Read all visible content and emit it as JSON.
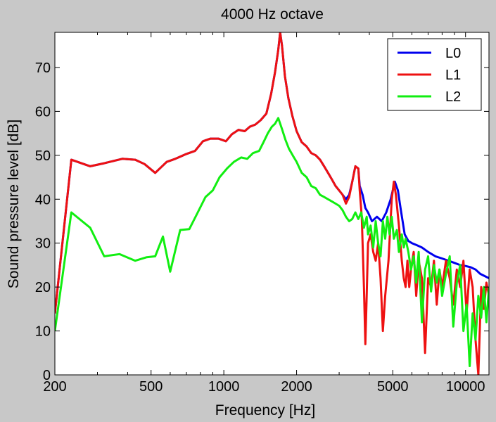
{
  "chart_data": {
    "type": "line",
    "title": "4000 Hz octave",
    "xlabel": "Frequency [Hz]",
    "ylabel": "Sound pressure level [dB]",
    "xscale": "log",
    "xlim": [
      200,
      12500
    ],
    "ylim": [
      0,
      78
    ],
    "xticks": [
      200,
      500,
      1000,
      2000,
      5000,
      10000
    ],
    "xtick_labels": [
      "200",
      "500",
      "1000",
      "2000",
      "5000",
      "10000"
    ],
    "yticks": [
      0,
      10,
      20,
      30,
      40,
      50,
      60,
      70
    ],
    "ytick_labels": [
      "0",
      "10",
      "20",
      "30",
      "40",
      "50",
      "60",
      "70"
    ],
    "grid": false,
    "legend_position": "top-right",
    "colors": {
      "background": "#c8c8c8",
      "plot_area": "#ffffff",
      "L0": "#0000ee",
      "L1": "#ee1111",
      "L2": "#11ee11"
    },
    "series": [
      {
        "name": "L0",
        "color": "#0000ee",
        "points": [
          [
            200,
            14
          ],
          [
            234,
            49
          ],
          [
            280,
            47.5
          ],
          [
            320,
            48.2
          ],
          [
            380,
            49.2
          ],
          [
            430,
            49
          ],
          [
            470,
            48
          ],
          [
            520,
            46
          ],
          [
            580,
            48.5
          ],
          [
            630,
            49.2
          ],
          [
            700,
            50.3
          ],
          [
            760,
            51
          ],
          [
            820,
            53.2
          ],
          [
            880,
            53.8
          ],
          [
            950,
            53.8
          ],
          [
            1020,
            53.2
          ],
          [
            1080,
            54.8
          ],
          [
            1150,
            55.8
          ],
          [
            1220,
            55.5
          ],
          [
            1280,
            56.5
          ],
          [
            1350,
            57
          ],
          [
            1420,
            58
          ],
          [
            1500,
            59.5
          ],
          [
            1570,
            64
          ],
          [
            1630,
            69
          ],
          [
            1680,
            74
          ],
          [
            1710,
            78
          ],
          [
            1740,
            75
          ],
          [
            1790,
            68
          ],
          [
            1850,
            63
          ],
          [
            1920,
            59
          ],
          [
            2000,
            55.5
          ],
          [
            2100,
            53
          ],
          [
            2200,
            52
          ],
          [
            2300,
            50.5
          ],
          [
            2400,
            50
          ],
          [
            2500,
            49
          ],
          [
            2600,
            47.5
          ],
          [
            2700,
            46
          ],
          [
            2800,
            44.5
          ],
          [
            2900,
            43
          ],
          [
            3000,
            42
          ],
          [
            3100,
            41
          ],
          [
            3200,
            40
          ],
          [
            3300,
            41
          ],
          [
            3400,
            44
          ],
          [
            3500,
            47.5
          ],
          [
            3600,
            47
          ],
          [
            3650,
            43
          ],
          [
            3750,
            41
          ],
          [
            3850,
            38
          ],
          [
            3950,
            37
          ],
          [
            4100,
            35
          ],
          [
            4300,
            36
          ],
          [
            4500,
            35
          ],
          [
            4700,
            37
          ],
          [
            4900,
            40
          ],
          [
            5100,
            44
          ],
          [
            5250,
            42
          ],
          [
            5400,
            37.5
          ],
          [
            5600,
            32
          ],
          [
            5800,
            30.5
          ],
          [
            6000,
            30
          ],
          [
            6300,
            29.5
          ],
          [
            6600,
            29
          ],
          [
            7000,
            28
          ],
          [
            7500,
            27
          ],
          [
            8000,
            26.5
          ],
          [
            8500,
            26
          ],
          [
            9000,
            25.5
          ],
          [
            9500,
            25
          ],
          [
            10000,
            24.8
          ],
          [
            10500,
            24.5
          ],
          [
            11000,
            24
          ],
          [
            11500,
            23
          ],
          [
            12000,
            22.5
          ],
          [
            12500,
            22
          ]
        ]
      },
      {
        "name": "L1",
        "color": "#ee1111",
        "points": [
          [
            200,
            14
          ],
          [
            234,
            49
          ],
          [
            280,
            47.5
          ],
          [
            320,
            48.2
          ],
          [
            380,
            49.2
          ],
          [
            430,
            49
          ],
          [
            470,
            48
          ],
          [
            520,
            46
          ],
          [
            580,
            48.5
          ],
          [
            630,
            49.2
          ],
          [
            700,
            50.3
          ],
          [
            760,
            51
          ],
          [
            820,
            53.2
          ],
          [
            880,
            53.8
          ],
          [
            950,
            53.8
          ],
          [
            1020,
            53.2
          ],
          [
            1080,
            54.8
          ],
          [
            1150,
            55.8
          ],
          [
            1220,
            55.5
          ],
          [
            1280,
            56.5
          ],
          [
            1350,
            57
          ],
          [
            1420,
            58
          ],
          [
            1500,
            59.5
          ],
          [
            1570,
            64
          ],
          [
            1630,
            69
          ],
          [
            1680,
            74
          ],
          [
            1710,
            78
          ],
          [
            1740,
            75
          ],
          [
            1790,
            68
          ],
          [
            1850,
            63
          ],
          [
            1920,
            59
          ],
          [
            2000,
            55.5
          ],
          [
            2100,
            53
          ],
          [
            2200,
            52
          ],
          [
            2300,
            50.5
          ],
          [
            2400,
            50
          ],
          [
            2500,
            49
          ],
          [
            2600,
            47.5
          ],
          [
            2700,
            46
          ],
          [
            2800,
            44.5
          ],
          [
            2900,
            43
          ],
          [
            3000,
            42
          ],
          [
            3100,
            41
          ],
          [
            3200,
            39
          ],
          [
            3300,
            40.5
          ],
          [
            3400,
            44
          ],
          [
            3500,
            47.5
          ],
          [
            3600,
            47
          ],
          [
            3650,
            42
          ],
          [
            3720,
            36
          ],
          [
            3800,
            20
          ],
          [
            3850,
            7
          ],
          [
            3900,
            18
          ],
          [
            3950,
            30
          ],
          [
            4050,
            32
          ],
          [
            4150,
            28
          ],
          [
            4250,
            26
          ],
          [
            4350,
            30
          ],
          [
            4450,
            22
          ],
          [
            4550,
            10
          ],
          [
            4650,
            18
          ],
          [
            4800,
            26
          ],
          [
            4950,
            40
          ],
          [
            5050,
            44
          ],
          [
            5150,
            41
          ],
          [
            5300,
            34
          ],
          [
            5450,
            26
          ],
          [
            5550,
            22
          ],
          [
            5650,
            20
          ],
          [
            5750,
            26
          ],
          [
            5850,
            20
          ],
          [
            5950,
            24
          ],
          [
            6100,
            28
          ],
          [
            6250,
            18
          ],
          [
            6400,
            26
          ],
          [
            6600,
            22
          ],
          [
            6800,
            5
          ],
          [
            7000,
            22
          ],
          [
            7200,
            20
          ],
          [
            7400,
            26
          ],
          [
            7600,
            16
          ],
          [
            7800,
            24
          ],
          [
            8000,
            20
          ],
          [
            8300,
            26
          ],
          [
            8600,
            22
          ],
          [
            8900,
            16
          ],
          [
            9200,
            24
          ],
          [
            9500,
            20
          ],
          [
            9800,
            26
          ],
          [
            10100,
            14
          ],
          [
            10400,
            24
          ],
          [
            10700,
            20
          ],
          [
            11000,
            8
          ],
          [
            11300,
            0
          ],
          [
            11600,
            20
          ],
          [
            11900,
            15
          ],
          [
            12200,
            21
          ],
          [
            12500,
            18
          ]
        ]
      },
      {
        "name": "L2",
        "color": "#11ee11",
        "points": [
          [
            200,
            10
          ],
          [
            234,
            37
          ],
          [
            280,
            33.5
          ],
          [
            320,
            27
          ],
          [
            370,
            27.5
          ],
          [
            430,
            26
          ],
          [
            480,
            26.8
          ],
          [
            520,
            27
          ],
          [
            560,
            31.5
          ],
          [
            600,
            23.5
          ],
          [
            660,
            33
          ],
          [
            720,
            33.2
          ],
          [
            780,
            37
          ],
          [
            840,
            40.5
          ],
          [
            900,
            42
          ],
          [
            960,
            45
          ],
          [
            1030,
            47
          ],
          [
            1100,
            48.5
          ],
          [
            1180,
            49.5
          ],
          [
            1250,
            49.2
          ],
          [
            1320,
            50.5
          ],
          [
            1400,
            51
          ],
          [
            1460,
            53
          ],
          [
            1520,
            55
          ],
          [
            1580,
            56.5
          ],
          [
            1630,
            57.2
          ],
          [
            1680,
            58.5
          ],
          [
            1740,
            56
          ],
          [
            1800,
            53.5
          ],
          [
            1860,
            51.5
          ],
          [
            1950,
            49.5
          ],
          [
            2000,
            48.5
          ],
          [
            2100,
            46
          ],
          [
            2200,
            45
          ],
          [
            2300,
            43
          ],
          [
            2400,
            42.5
          ],
          [
            2500,
            41
          ],
          [
            2600,
            40.5
          ],
          [
            2700,
            40
          ],
          [
            2800,
            39.5
          ],
          [
            2900,
            39
          ],
          [
            3000,
            38.5
          ],
          [
            3100,
            37.5
          ],
          [
            3200,
            36
          ],
          [
            3300,
            35
          ],
          [
            3400,
            35.5
          ],
          [
            3500,
            37
          ],
          [
            3600,
            35.5
          ],
          [
            3700,
            37
          ],
          [
            3800,
            33.5
          ],
          [
            3900,
            36
          ],
          [
            3950,
            32
          ],
          [
            4050,
            34
          ],
          [
            4150,
            29
          ],
          [
            4250,
            35
          ],
          [
            4350,
            30
          ],
          [
            4450,
            27
          ],
          [
            4550,
            35
          ],
          [
            4650,
            31
          ],
          [
            4750,
            36
          ],
          [
            4850,
            32
          ],
          [
            4950,
            36
          ],
          [
            5050,
            31
          ],
          [
            5200,
            33
          ],
          [
            5300,
            28
          ],
          [
            5450,
            32
          ],
          [
            5550,
            29
          ],
          [
            5650,
            31
          ],
          [
            5800,
            28
          ],
          [
            5950,
            24
          ],
          [
            6100,
            27
          ],
          [
            6250,
            21
          ],
          [
            6400,
            28
          ],
          [
            6600,
            12
          ],
          [
            6800,
            24
          ],
          [
            7000,
            27
          ],
          [
            7200,
            19
          ],
          [
            7400,
            25
          ],
          [
            7600,
            21
          ],
          [
            7800,
            24
          ],
          [
            8000,
            18
          ],
          [
            8300,
            23
          ],
          [
            8600,
            27
          ],
          [
            8900,
            11
          ],
          [
            9200,
            21
          ],
          [
            9500,
            25
          ],
          [
            9800,
            10
          ],
          [
            10100,
            16
          ],
          [
            10400,
            2
          ],
          [
            10700,
            14
          ],
          [
            11000,
            8
          ],
          [
            11300,
            18
          ],
          [
            11600,
            13
          ],
          [
            11900,
            20
          ],
          [
            12200,
            12
          ],
          [
            12500,
            20
          ]
        ]
      }
    ]
  }
}
